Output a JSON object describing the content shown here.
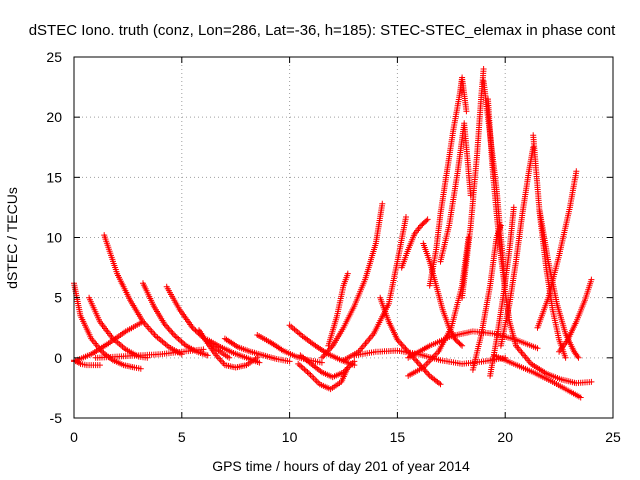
{
  "chart_data": {
    "type": "scatter",
    "title": "dSTEC Iono. truth (conz, Lon=286, Lat=-36, h=185): STEC-STEC_elemax in phase cont",
    "xlabel": "GPS time / hours of day 201 of year 2014",
    "ylabel": "dSTEC  / TECUs",
    "xlim": [
      0,
      25
    ],
    "ylim": [
      -5,
      25
    ],
    "xticks": [
      0,
      5,
      10,
      15,
      20,
      25
    ],
    "yticks": [
      -5,
      0,
      5,
      10,
      15,
      20,
      25
    ],
    "grid": true,
    "marker": "+",
    "color": "#ff0000",
    "series": [
      {
        "x": [
          0.0,
          0.3,
          0.8,
          1.3,
          1.8,
          2.3,
          2.8,
          3.1
        ],
        "y": [
          6.2,
          3.5,
          1.6,
          0.5,
          -0.2,
          -0.6,
          -0.8,
          -0.9
        ]
      },
      {
        "x": [
          0.0,
          0.3,
          0.6,
          0.9,
          1.2
        ],
        "y": [
          -0.2,
          -0.5,
          -0.6,
          -0.6,
          -0.6
        ]
      },
      {
        "x": [
          0.7,
          1.2,
          1.8,
          2.4,
          3.0,
          3.4
        ],
        "y": [
          5.0,
          3.0,
          1.6,
          0.7,
          0.1,
          0.0
        ]
      },
      {
        "x": [
          1.4,
          2.0,
          2.6,
          3.2,
          3.8,
          4.4,
          5.0
        ],
        "y": [
          10.2,
          7.0,
          4.8,
          3.0,
          1.8,
          0.9,
          0.3
        ]
      },
      {
        "x": [
          0.0,
          0.8,
          1.6,
          2.4,
          3.2
        ],
        "y": [
          -0.3,
          0.3,
          1.2,
          2.2,
          3.0
        ]
      },
      {
        "x": [
          3.2,
          3.7,
          4.2,
          4.7,
          5.2,
          5.7,
          6.2
        ],
        "y": [
          6.2,
          4.3,
          2.8,
          1.8,
          1.0,
          0.5,
          0.2
        ]
      },
      {
        "x": [
          4.3,
          4.9,
          5.5,
          6.1,
          6.7,
          7.2
        ],
        "y": [
          5.9,
          4.0,
          2.5,
          1.5,
          0.6,
          0.0
        ]
      },
      {
        "x": [
          1.0,
          2.0,
          3.0,
          4.0,
          5.0,
          6.0
        ],
        "y": [
          0.0,
          0.1,
          0.2,
          0.3,
          0.5,
          0.7
        ]
      },
      {
        "x": [
          5.8,
          6.2,
          6.6,
          7.0,
          7.5,
          8.0,
          8.5
        ],
        "y": [
          2.3,
          1.2,
          0.2,
          -0.6,
          -0.8,
          -0.6,
          0.0
        ]
      },
      {
        "x": [
          6.2,
          6.8,
          7.4,
          8.0,
          8.6
        ],
        "y": [
          1.5,
          0.9,
          0.4,
          0.0,
          -0.4
        ]
      },
      {
        "x": [
          7.0,
          7.6,
          8.2,
          8.8,
          9.4,
          10.0
        ],
        "y": [
          1.6,
          0.9,
          0.5,
          0.2,
          -0.1,
          -0.3
        ]
      },
      {
        "x": [
          8.5,
          9.1,
          9.7,
          10.3,
          10.9,
          11.5
        ],
        "y": [
          1.9,
          1.3,
          0.6,
          0.1,
          -0.2,
          -0.4
        ]
      },
      {
        "x": [
          10.0,
          10.6,
          11.2,
          11.8,
          12.4,
          13.0
        ],
        "y": [
          2.7,
          1.8,
          1.0,
          0.3,
          -0.2,
          -0.6
        ]
      },
      {
        "x": [
          10.4,
          10.9,
          11.4,
          11.9,
          12.4,
          12.7
        ],
        "y": [
          -0.5,
          -1.3,
          -2.2,
          -2.6,
          -2.0,
          -0.8
        ]
      },
      {
        "x": [
          11.8,
          12.2,
          12.5,
          12.7
        ],
        "y": [
          1.0,
          3.5,
          6.0,
          7.0
        ]
      },
      {
        "x": [
          10.5,
          11.0,
          11.5,
          12.0,
          12.5,
          13.0
        ],
        "y": [
          0.2,
          -0.5,
          -1.2,
          -1.6,
          -1.2,
          -0.3
        ]
      },
      {
        "x": [
          11.5,
          12.0,
          12.5,
          13.0,
          13.5,
          14.0,
          14.3
        ],
        "y": [
          0.0,
          1.0,
          2.5,
          4.3,
          6.5,
          9.5,
          12.8
        ]
      },
      {
        "x": [
          12.5,
          13.2,
          13.9,
          14.6,
          15.0,
          15.4
        ],
        "y": [
          -0.2,
          0.5,
          2.0,
          4.5,
          8.0,
          11.7
        ]
      },
      {
        "x": [
          14.2,
          14.6,
          15.0,
          15.5,
          16.0,
          16.5,
          17.0
        ],
        "y": [
          5.0,
          3.0,
          1.5,
          0.5,
          -0.5,
          -1.5,
          -2.2
        ]
      },
      {
        "x": [
          15.2,
          15.5,
          15.8,
          16.1,
          16.4
        ],
        "y": [
          7.5,
          9.0,
          10.3,
          11.0,
          11.5
        ]
      },
      {
        "x": [
          16.2,
          16.5,
          16.8,
          17.1,
          17.4,
          17.7,
          18.0
        ],
        "y": [
          9.5,
          8.0,
          6.0,
          4.0,
          2.5,
          1.5,
          1.0
        ]
      },
      {
        "x": [
          16.5,
          16.8,
          17.0,
          17.3,
          17.6,
          17.9,
          18.0,
          18.2
        ],
        "y": [
          6.0,
          9.0,
          12.0,
          15.5,
          19.0,
          22.0,
          23.3,
          20.5
        ]
      },
      {
        "x": [
          15.5,
          16.2,
          16.9,
          17.5,
          18.0,
          18.3
        ],
        "y": [
          -1.5,
          -0.8,
          0.5,
          2.5,
          6.0,
          10.0
        ]
      },
      {
        "x": [
          17.0,
          17.4,
          17.8,
          18.1,
          18.4
        ],
        "y": [
          8.0,
          11.0,
          15.5,
          19.5,
          13.5
        ]
      },
      {
        "x": [
          18.0,
          18.4,
          18.7,
          18.9,
          19.0
        ],
        "y": [
          5.0,
          11.0,
          17.0,
          22.0,
          24.0
        ]
      },
      {
        "x": [
          19.0,
          19.2,
          19.4,
          19.6,
          19.8,
          20.0
        ],
        "y": [
          23.0,
          20.0,
          17.0,
          14.0,
          10.0,
          6.0
        ]
      },
      {
        "x": [
          19.2,
          19.4,
          19.6,
          19.8,
          20.0,
          20.2,
          20.5
        ],
        "y": [
          21.5,
          16.0,
          12.0,
          8.5,
          5.5,
          3.0,
          1.0
        ]
      },
      {
        "x": [
          18.5,
          18.9,
          19.3,
          19.6,
          19.8
        ],
        "y": [
          -1.0,
          2.0,
          6.0,
          10.0,
          11.0
        ]
      },
      {
        "x": [
          19.3,
          19.6,
          19.9,
          20.2,
          20.4
        ],
        "y": [
          -1.5,
          1.5,
          5.0,
          9.0,
          12.5
        ]
      },
      {
        "x": [
          19.8,
          20.2,
          20.5,
          20.8,
          21.1,
          21.3
        ],
        "y": [
          1.0,
          4.5,
          8.0,
          12.0,
          15.5,
          17.5
        ]
      },
      {
        "x": [
          21.3,
          21.6,
          21.9,
          22.2,
          22.5,
          22.8
        ],
        "y": [
          18.5,
          12.0,
          7.5,
          4.0,
          1.5,
          0.0
        ]
      },
      {
        "x": [
          21.6,
          22.0,
          22.4,
          22.8,
          23.2,
          23.4
        ],
        "y": [
          12.2,
          8.0,
          4.5,
          2.0,
          0.5,
          0.0
        ]
      },
      {
        "x": [
          21.5,
          22.0,
          22.5,
          23.0,
          23.3
        ],
        "y": [
          2.5,
          5.0,
          8.5,
          12.5,
          15.5
        ]
      },
      {
        "x": [
          22.5,
          22.9,
          23.3,
          23.7,
          24.0
        ],
        "y": [
          0.5,
          1.5,
          3.0,
          4.8,
          6.5
        ]
      },
      {
        "x": [
          20.5,
          21.2,
          21.9,
          22.6,
          23.3,
          24.0
        ],
        "y": [
          1.0,
          -0.5,
          -1.3,
          -1.8,
          -2.1,
          -2.0
        ]
      },
      {
        "x": [
          19.5,
          20.4,
          21.3,
          22.2,
          23.0,
          23.5
        ],
        "y": [
          0.2,
          -0.5,
          -1.2,
          -2.0,
          -2.8,
          -3.3
        ]
      },
      {
        "x": [
          15.5,
          16.5,
          17.5,
          18.5,
          19.5,
          20.5,
          21.5
        ],
        "y": [
          0.0,
          1.0,
          1.8,
          2.2,
          2.0,
          1.5,
          0.8
        ]
      },
      {
        "x": [
          13.0,
          14.0,
          15.0,
          16.0,
          17.0,
          18.0,
          19.0,
          20.0
        ],
        "y": [
          0.2,
          0.5,
          0.6,
          0.3,
          -0.2,
          -0.5,
          -0.3,
          0.0
        ]
      }
    ]
  }
}
